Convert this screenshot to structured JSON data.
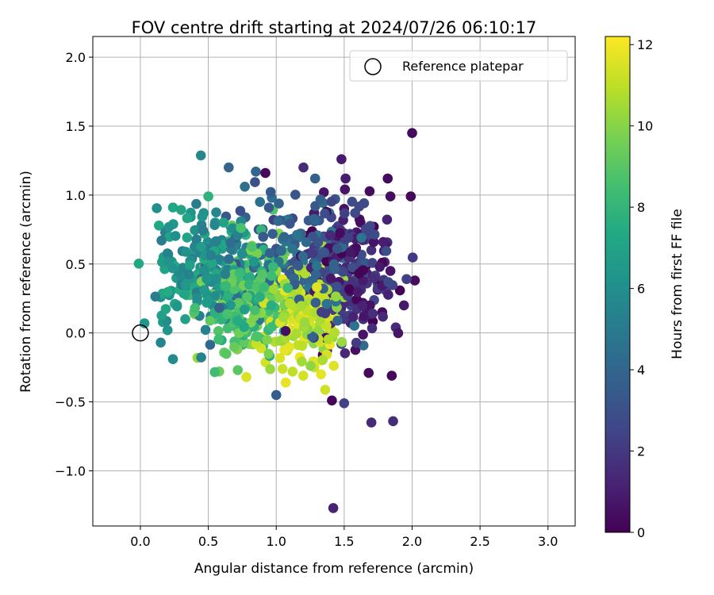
{
  "chart_data": {
    "type": "scatter",
    "title": "FOV centre drift starting at 2024/07/26 06:10:17",
    "xlabel": "Angular distance from reference (arcmin)",
    "ylabel": "Rotation from reference (arcmin)",
    "xlim": [
      -0.35,
      3.2
    ],
    "ylim": [
      -1.4,
      2.15
    ],
    "xticks": [
      0.0,
      0.5,
      1.0,
      1.5,
      2.0,
      2.5,
      3.0
    ],
    "yticks": [
      -1.0,
      -0.5,
      0.0,
      0.5,
      1.0,
      1.5,
      2.0
    ],
    "xtick_labels": [
      "0.0",
      "0.5",
      "1.0",
      "1.5",
      "2.0",
      "2.5",
      "3.0"
    ],
    "ytick_labels": [
      "−1.0",
      "−0.5",
      "0.0",
      "0.5",
      "1.0",
      "1.5",
      "2.0"
    ],
    "grid": true,
    "legend": {
      "position": "top-right",
      "entries": [
        "Reference platepar"
      ]
    },
    "reference": {
      "label": "Reference platepar",
      "x": 0.0,
      "y": 0.0,
      "marker": "open-circle"
    },
    "colorbar": {
      "label": "Hours from first FF file",
      "colormap": "viridis",
      "range": [
        0,
        12.2
      ],
      "ticks": [
        0,
        2,
        4,
        6,
        8,
        10,
        12
      ],
      "tick_labels": [
        "0",
        "2",
        "4",
        "6",
        "8",
        "10",
        "12"
      ]
    },
    "point_color_by": "hours",
    "point_count_estimate": 1000,
    "points": [
      {
        "x": 2.0,
        "y": 1.45,
        "hours": 0.3
      },
      {
        "x": 1.42,
        "y": -1.27,
        "hours": 1.2
      },
      {
        "x": 1.48,
        "y": 1.26,
        "hours": 0.9
      },
      {
        "x": 1.5,
        "y": -0.51,
        "hours": 2.4
      },
      {
        "x": 1.7,
        "y": -0.65,
        "hours": 1.4
      },
      {
        "x": 1.86,
        "y": -0.64,
        "hours": 1.5
      },
      {
        "x": 1.85,
        "y": -0.31,
        "hours": 0.2
      },
      {
        "x": 1.68,
        "y": -0.29,
        "hours": 0.3
      },
      {
        "x": 2.02,
        "y": 0.38,
        "hours": 0.4
      },
      {
        "x": 1.99,
        "y": 0.99,
        "hours": 0.2
      },
      {
        "x": 1.82,
        "y": 1.12,
        "hours": 0.3
      },
      {
        "x": 1.84,
        "y": 0.99,
        "hours": 0.4
      },
      {
        "x": 1.51,
        "y": 1.12,
        "hours": 1.0
      },
      {
        "x": 1.2,
        "y": 1.2,
        "hours": 1.5
      },
      {
        "x": 0.65,
        "y": 1.2,
        "hours": 4.0
      },
      {
        "x": 0.85,
        "y": 1.17,
        "hours": 4.0
      },
      {
        "x": 0.92,
        "y": 1.16,
        "hours": 0.2
      },
      {
        "x": 1.0,
        "y": -0.45,
        "hours": 3.6
      },
      {
        "x": 0.24,
        "y": -0.19,
        "hours": 5.8
      },
      {
        "x": 0.42,
        "y": -0.18,
        "hours": 10.3
      },
      {
        "x": 0.78,
        "y": -0.32,
        "hours": 11.5
      },
      {
        "x": 1.07,
        "y": -0.36,
        "hours": 11.8
      },
      {
        "x": 1.33,
        "y": -0.3,
        "hours": 11.7
      },
      {
        "x": 0.03,
        "y": 0.07,
        "hours": 6.4
      },
      {
        "x": 1.59,
        "y": 0.73,
        "hours": 0.9
      },
      {
        "x": 1.28,
        "y": 0.69,
        "hours": 11.5
      },
      {
        "x": 0.5,
        "y": 0.99,
        "hours": 7.8
      },
      {
        "x": 0.24,
        "y": 0.91,
        "hours": 7.2
      },
      {
        "x": 1.62,
        "y": 0.8,
        "hours": 0.5
      },
      {
        "x": 1.73,
        "y": 0.4,
        "hours": 0.8
      },
      {
        "x": 1.94,
        "y": 0.2,
        "hours": 0.9
      },
      {
        "x": 1.88,
        "y": 0.04,
        "hours": 1.5
      },
      {
        "x": 1.36,
        "y": 0.48,
        "hours": 11.6
      },
      {
        "x": 1.3,
        "y": 0.3,
        "hours": 11.9
      },
      {
        "x": 1.38,
        "y": 0.26,
        "hours": 11.8
      },
      {
        "x": 1.4,
        "y": 0.05,
        "hours": 11.4
      },
      {
        "x": 1.18,
        "y": 0.11,
        "hours": 10.7
      },
      {
        "x": 1.28,
        "y": -0.25,
        "hours": 11.3
      },
      {
        "x": 0.8,
        "y": -0.08,
        "hours": 9.8
      },
      {
        "x": 0.58,
        "y": -0.28,
        "hours": 9.5
      },
      {
        "x": 0.64,
        "y": 0.36,
        "hours": 8.8
      },
      {
        "x": 0.37,
        "y": 0.84,
        "hours": 6.4
      },
      {
        "x": 0.15,
        "y": 0.26,
        "hours": 6.1
      },
      {
        "x": 0.17,
        "y": 0.55,
        "hours": 6.8
      },
      {
        "x": 0.57,
        "y": 0.62,
        "hours": 7.3
      },
      {
        "x": 0.9,
        "y": 0.45,
        "hours": 9.3
      },
      {
        "x": 1.1,
        "y": 0.38,
        "hours": 10.6
      },
      {
        "x": 1.52,
        "y": 0.38,
        "hours": 0.9
      },
      {
        "x": 1.6,
        "y": 0.5,
        "hours": 1.0
      },
      {
        "x": 1.7,
        "y": 0.6,
        "hours": 1.6
      },
      {
        "x": 1.45,
        "y": 0.62,
        "hours": 2.2
      },
      {
        "x": 1.25,
        "y": 0.58,
        "hours": 2.8
      },
      {
        "x": 1.12,
        "y": 0.83,
        "hours": 2.6
      },
      {
        "x": 1.02,
        "y": 0.72,
        "hours": 10.0
      },
      {
        "x": 0.88,
        "y": 0.95,
        "hours": 4.5
      },
      {
        "x": 0.7,
        "y": 0.72,
        "hours": 6.4
      },
      {
        "x": 0.45,
        "y": 0.42,
        "hours": 7.4
      },
      {
        "x": 0.33,
        "y": 0.1,
        "hours": 6.9
      },
      {
        "x": 0.2,
        "y": 0.02,
        "hours": 6.3
      },
      {
        "x": 0.15,
        "y": -0.07,
        "hours": 5.5
      },
      {
        "x": 0.55,
        "y": 0.1,
        "hours": 8.6
      },
      {
        "x": 0.72,
        "y": -0.05,
        "hours": 8.4
      },
      {
        "x": 0.94,
        "y": 0.1,
        "hours": 9.1
      },
      {
        "x": 1.06,
        "y": -0.07,
        "hours": 10.2
      },
      {
        "x": 1.24,
        "y": 0.02,
        "hours": 11.0
      },
      {
        "x": 1.33,
        "y": -0.2,
        "hours": 11.9
      },
      {
        "x": 1.48,
        "y": -0.08,
        "hours": 2.9
      },
      {
        "x": 1.64,
        "y": 0.1,
        "hours": 1.6
      },
      {
        "x": 1.78,
        "y": 0.15,
        "hours": 0.4
      },
      {
        "x": 1.84,
        "y": 0.45,
        "hours": 0.7
      },
      {
        "x": 1.55,
        "y": 0.2,
        "hours": 2.4
      },
      {
        "x": 1.42,
        "y": 0.35,
        "hours": 1.8
      },
      {
        "x": 1.35,
        "y": 0.7,
        "hours": 1.3
      },
      {
        "x": 1.28,
        "y": 0.87,
        "hours": 1.6
      },
      {
        "x": 1.05,
        "y": 0.55,
        "hours": 9.6
      },
      {
        "x": 0.96,
        "y": 0.3,
        "hours": 10.4
      },
      {
        "x": 0.82,
        "y": 0.2,
        "hours": 9.9
      },
      {
        "x": 0.62,
        "y": 0.45,
        "hours": 7.7
      },
      {
        "x": 0.4,
        "y": 0.58,
        "hours": 6.8
      },
      {
        "x": 0.3,
        "y": 0.35,
        "hours": 7.0
      },
      {
        "x": 0.5,
        "y": 0.25,
        "hours": 8.1
      },
      {
        "x": 0.68,
        "y": 0.15,
        "hours": 8.9
      },
      {
        "x": 0.86,
        "y": 0.05,
        "hours": 9.7
      },
      {
        "x": 1.15,
        "y": 0.2,
        "hours": 11.2
      },
      {
        "x": 1.22,
        "y": 0.45,
        "hours": 3.3
      },
      {
        "x": 0.78,
        "y": 0.62,
        "hours": 5.2
      },
      {
        "x": 0.55,
        "y": 0.8,
        "hours": 6.1
      },
      {
        "x": 0.98,
        "y": 0.82,
        "hours": 2.2
      },
      {
        "x": 1.5,
        "y": 0.9,
        "hours": 0.6
      },
      {
        "x": 1.35,
        "y": 1.02,
        "hours": 0.7
      }
    ]
  }
}
